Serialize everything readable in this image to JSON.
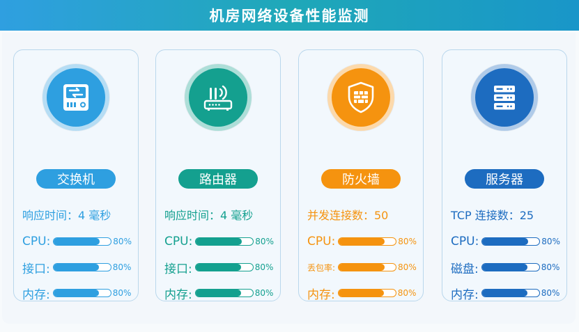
{
  "header": {
    "title": "机房网络设备性能监测"
  },
  "cards": [
    {
      "name": "交换机",
      "icon": "switch-icon",
      "color": "#2e9fe0",
      "headline": "响应时间：4 毫秒",
      "metrics": [
        {
          "label": "CPU:",
          "value": 80,
          "percent_text": "80%"
        },
        {
          "label": "接口:",
          "value": 80,
          "percent_text": "80%"
        },
        {
          "label": "内存:",
          "value": 80,
          "percent_text": "80%"
        }
      ]
    },
    {
      "name": "路由器",
      "icon": "router-icon",
      "color": "#14a08f",
      "headline": "响应时间：4 毫秒",
      "metrics": [
        {
          "label": "CPU:",
          "value": 80,
          "percent_text": "80%"
        },
        {
          "label": "接口:",
          "value": 80,
          "percent_text": "80%"
        },
        {
          "label": "内存:",
          "value": 80,
          "percent_text": "80%"
        }
      ]
    },
    {
      "name": "防火墙",
      "icon": "firewall-shield-icon",
      "color": "#f5930f",
      "headline": "并发连接数：50",
      "metrics": [
        {
          "label": "CPU:",
          "value": 80,
          "percent_text": "80%"
        },
        {
          "label": "丢包率:",
          "value": 80,
          "percent_text": "80%"
        },
        {
          "label": "内存:",
          "value": 80,
          "percent_text": "80%"
        }
      ]
    },
    {
      "name": "服务器",
      "icon": "server-rack-icon",
      "color": "#1d6cc0",
      "headline": "TCP 连接数：25",
      "metrics": [
        {
          "label": "CPU:",
          "value": 80,
          "percent_text": "80%"
        },
        {
          "label": "磁盘:",
          "value": 80,
          "percent_text": "80%"
        },
        {
          "label": "内存:",
          "value": 80,
          "percent_text": "80%"
        }
      ]
    }
  ]
}
